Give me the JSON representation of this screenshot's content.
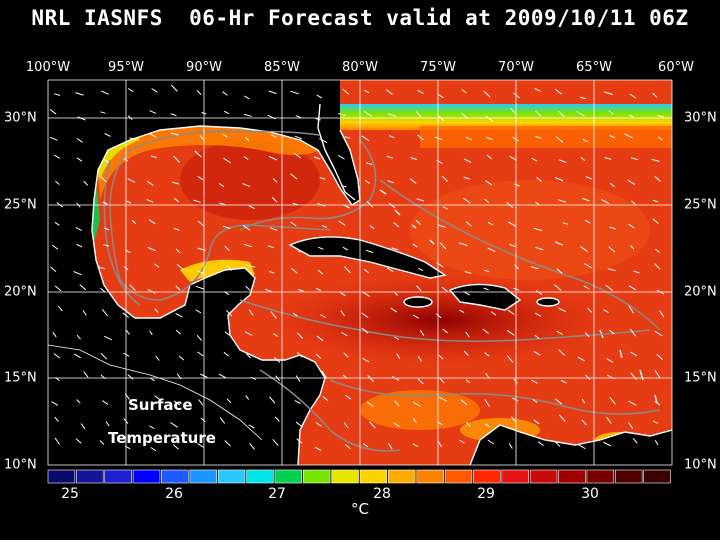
{
  "title": "NRL IASNFS  06-Hr Forecast valid at 2009/10/11 06Z",
  "map_label_line1": "Surface",
  "map_label_line2": "Temperature",
  "longitude_labels": [
    "100°W",
    "95°W",
    "90°W",
    "85°W",
    "80°W",
    "75°W",
    "70°W",
    "65°W",
    "60°W"
  ],
  "latitude_labels": [
    "30°N",
    "25°N",
    "20°N",
    "15°N",
    "10°N"
  ],
  "colorbar": {
    "tick_labels": [
      "25",
      "26",
      "27",
      "28",
      "29",
      "30"
    ],
    "units": "°C",
    "colors": [
      "#0a0a6e",
      "#141496",
      "#1e1ed2",
      "#0000ff",
      "#1e5aff",
      "#1e96ff",
      "#28c8ff",
      "#00e6e6",
      "#00d250",
      "#78e600",
      "#e6e600",
      "#ffd200",
      "#ffaa00",
      "#ff8200",
      "#ff5a00",
      "#ff2800",
      "#e61414",
      "#c80a0a",
      "#a00000",
      "#780000",
      "#500000",
      "#3c0000"
    ]
  },
  "colors": {
    "background": "#000000",
    "land": "#000000",
    "sea_warm": "#e63214",
    "sea_hot": "#a00a0a",
    "coast": "#ffffff",
    "grid": "#ffffff",
    "isobath": "#8a8a8a"
  }
}
